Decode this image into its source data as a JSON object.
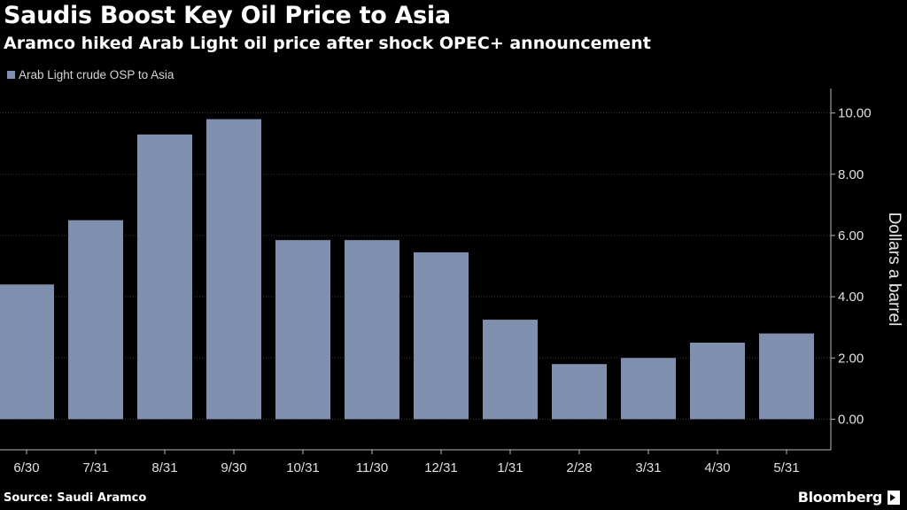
{
  "header": {
    "title": "Saudis Boost Key Oil Price to Asia",
    "subtitle": "Aramco hiked Arab Light oil price after shock OPEC+ announcement"
  },
  "legend": {
    "label": "Arab Light crude OSP to Asia",
    "color": "#7f8fae"
  },
  "footer": {
    "source": "Source: Saudi Aramco",
    "brand": "Bloomberg"
  },
  "chart_data": {
    "type": "bar",
    "categories": [
      "6/30",
      "7/31",
      "8/31",
      "9/30",
      "10/31",
      "11/30",
      "12/31",
      "1/31",
      "2/28",
      "3/31",
      "4/30",
      "5/31"
    ],
    "series": [
      {
        "name": "Arab Light crude OSP to Asia",
        "values": [
          4.4,
          6.5,
          9.3,
          9.8,
          5.85,
          5.85,
          5.45,
          3.25,
          1.8,
          2.0,
          2.5,
          2.8
        ]
      }
    ],
    "ylabel": "Dollars a barrel",
    "ylim": [
      -1.0,
      10.8
    ],
    "yticks": [
      0,
      2,
      4,
      6,
      8,
      10
    ],
    "ytick_labels": [
      "0.00",
      "2.00",
      "4.00",
      "6.00",
      "8.00",
      "10.00"
    ],
    "y_axis_side": "right",
    "grid": true,
    "bar_color": "#7f8fae",
    "grid_color": "#3a3a3a"
  }
}
